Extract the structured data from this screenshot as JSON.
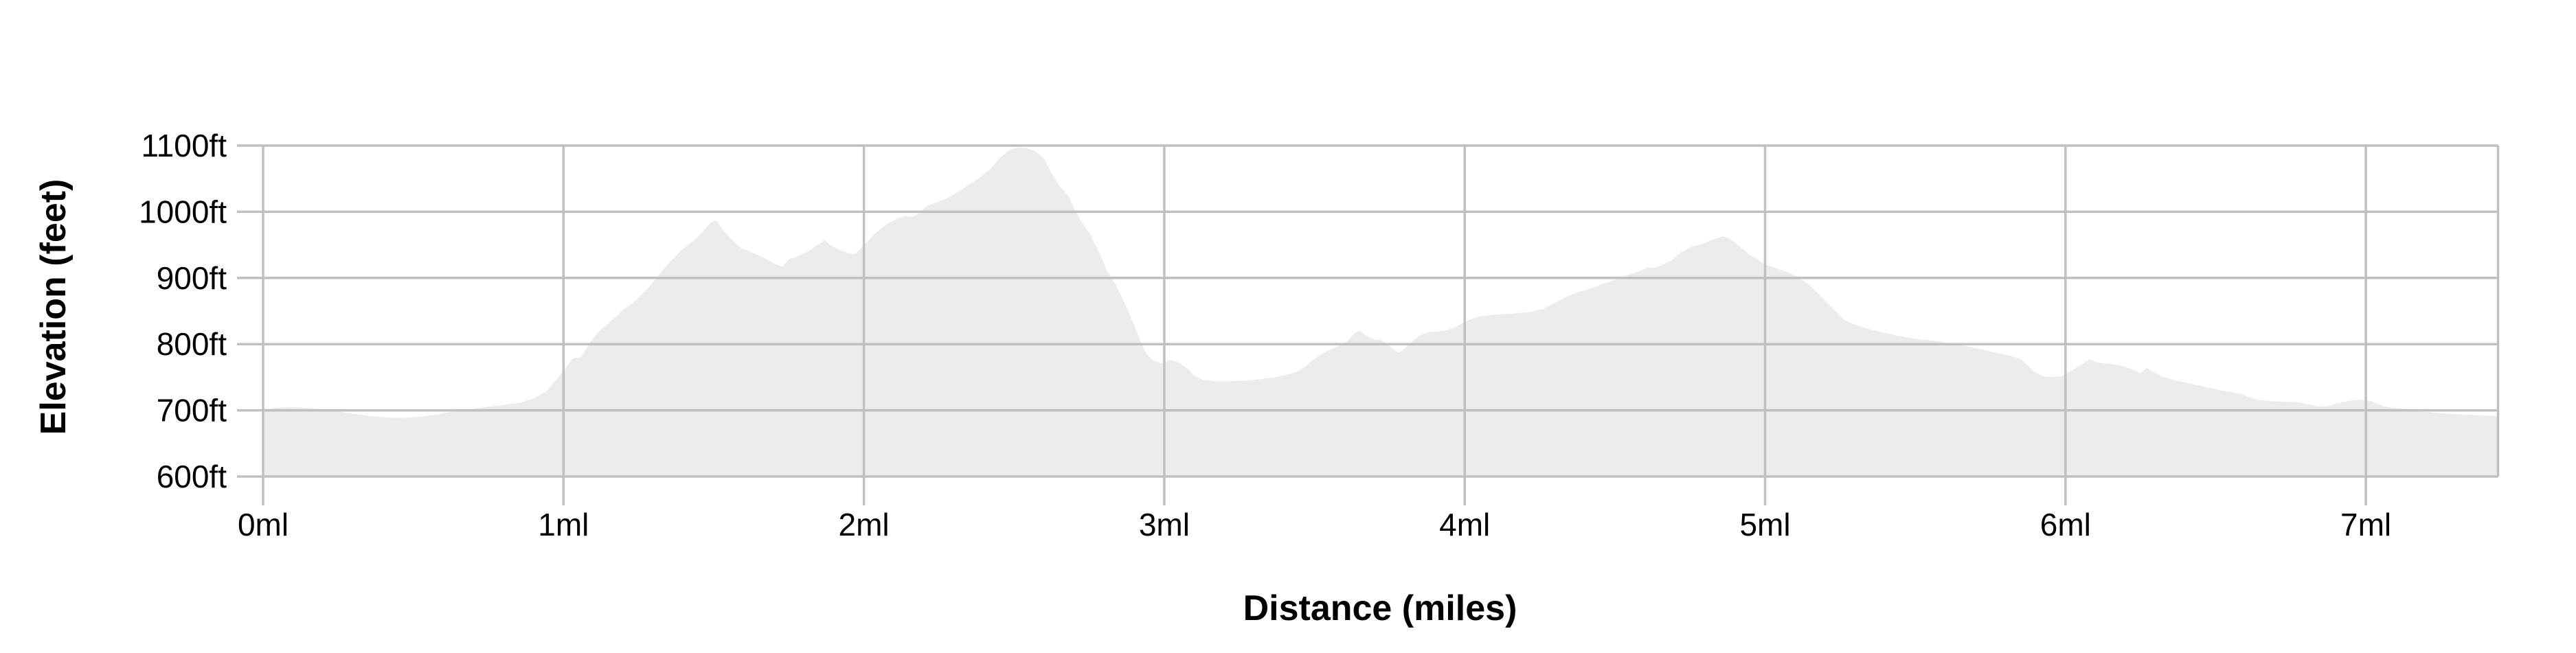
{
  "chart": {
    "y_axis_title": "Elevation (feet)",
    "x_axis_title": "Distance (miles)"
  },
  "chart_data": {
    "type": "area",
    "title": "",
    "xlabel": "Distance (miles)",
    "ylabel": "Elevation (feet)",
    "xlim": [
      0,
      7.44
    ],
    "ylim": [
      600,
      1100
    ],
    "grid": true,
    "legend_position": "none",
    "x_ticks": [
      0,
      1,
      2,
      3,
      4,
      5,
      6,
      7
    ],
    "x_tick_labels": [
      "0ml",
      "1ml",
      "2ml",
      "3ml",
      "4ml",
      "5ml",
      "6ml",
      "7ml"
    ],
    "y_ticks": [
      600,
      700,
      800,
      900,
      1000,
      1100
    ],
    "y_tick_labels": [
      "600ft",
      "700ft",
      "800ft",
      "900ft",
      "1000ft",
      "1100ft"
    ],
    "colors": {
      "area_fill": "#ececec",
      "grid": "#c0c0c0",
      "text": "#000000",
      "background": "#ffffff"
    },
    "series": [
      {
        "name": "elevation_profile",
        "units": {
          "x": "miles",
          "y": "feet"
        },
        "points": [
          [
            0.0,
            702
          ],
          [
            0.05,
            704
          ],
          [
            0.1,
            705
          ],
          [
            0.16,
            703
          ],
          [
            0.22,
            701
          ],
          [
            0.26,
            698
          ],
          [
            0.31,
            694
          ],
          [
            0.36,
            691
          ],
          [
            0.42,
            689
          ],
          [
            0.47,
            689
          ],
          [
            0.52,
            690
          ],
          [
            0.58,
            694
          ],
          [
            0.63,
            698
          ],
          [
            0.69,
            702
          ],
          [
            0.74,
            705
          ],
          [
            0.8,
            708
          ],
          [
            0.85,
            711
          ],
          [
            0.9,
            718
          ],
          [
            0.94,
            728
          ],
          [
            0.98,
            748
          ],
          [
            1.01,
            766
          ],
          [
            1.03,
            778
          ],
          [
            1.06,
            781
          ],
          [
            1.09,
            804
          ],
          [
            1.12,
            820
          ],
          [
            1.16,
            836
          ],
          [
            1.2,
            852
          ],
          [
            1.24,
            866
          ],
          [
            1.28,
            884
          ],
          [
            1.31,
            900
          ],
          [
            1.35,
            922
          ],
          [
            1.39,
            941
          ],
          [
            1.43,
            955
          ],
          [
            1.46,
            968
          ],
          [
            1.49,
            984
          ],
          [
            1.51,
            987
          ],
          [
            1.53,
            972
          ],
          [
            1.56,
            958
          ],
          [
            1.59,
            945
          ],
          [
            1.62,
            940
          ],
          [
            1.65,
            934
          ],
          [
            1.68,
            927
          ],
          [
            1.71,
            920
          ],
          [
            1.73,
            917
          ],
          [
            1.75,
            928
          ],
          [
            1.78,
            933
          ],
          [
            1.81,
            939
          ],
          [
            1.84,
            948
          ],
          [
            1.87,
            957
          ],
          [
            1.89,
            949
          ],
          [
            1.92,
            942
          ],
          [
            1.95,
            937
          ],
          [
            1.97,
            936
          ],
          [
            2.0,
            950
          ],
          [
            2.03,
            964
          ],
          [
            2.06,
            976
          ],
          [
            2.09,
            985
          ],
          [
            2.12,
            991
          ],
          [
            2.14,
            994
          ],
          [
            2.16,
            992
          ],
          [
            2.18,
            997
          ],
          [
            2.21,
            1009
          ],
          [
            2.24,
            1014
          ],
          [
            2.27,
            1019
          ],
          [
            2.3,
            1026
          ],
          [
            2.33,
            1035
          ],
          [
            2.36,
            1044
          ],
          [
            2.39,
            1053
          ],
          [
            2.42,
            1064
          ],
          [
            2.45,
            1080
          ],
          [
            2.48,
            1092
          ],
          [
            2.51,
            1097
          ],
          [
            2.54,
            1096
          ],
          [
            2.57,
            1092
          ],
          [
            2.6,
            1080
          ],
          [
            2.62,
            1062
          ],
          [
            2.65,
            1040
          ],
          [
            2.68,
            1024
          ],
          [
            2.7,
            1005
          ],
          [
            2.72,
            988
          ],
          [
            2.75,
            968
          ],
          [
            2.77,
            950
          ],
          [
            2.79,
            932
          ],
          [
            2.81,
            910
          ],
          [
            2.84,
            889
          ],
          [
            2.86,
            870
          ],
          [
            2.88,
            850
          ],
          [
            2.9,
            828
          ],
          [
            2.92,
            806
          ],
          [
            2.94,
            786
          ],
          [
            2.96,
            776
          ],
          [
            2.99,
            771
          ],
          [
            3.02,
            776
          ],
          [
            3.05,
            772
          ],
          [
            3.08,
            762
          ],
          [
            3.1,
            752
          ],
          [
            3.13,
            746
          ],
          [
            3.17,
            744
          ],
          [
            3.22,
            744
          ],
          [
            3.27,
            745
          ],
          [
            3.32,
            747
          ],
          [
            3.37,
            750
          ],
          [
            3.41,
            754
          ],
          [
            3.44,
            758
          ],
          [
            3.47,
            766
          ],
          [
            3.5,
            778
          ],
          [
            3.54,
            789
          ],
          [
            3.58,
            797
          ],
          [
            3.61,
            805
          ],
          [
            3.63,
            815
          ],
          [
            3.65,
            821
          ],
          [
            3.67,
            813
          ],
          [
            3.7,
            807
          ],
          [
            3.72,
            806
          ],
          [
            3.74,
            801
          ],
          [
            3.76,
            793
          ],
          [
            3.78,
            787
          ],
          [
            3.8,
            793
          ],
          [
            3.82,
            802
          ],
          [
            3.85,
            813
          ],
          [
            3.88,
            818
          ],
          [
            3.91,
            819
          ],
          [
            3.94,
            821
          ],
          [
            3.97,
            826
          ],
          [
            4.0,
            834
          ],
          [
            4.04,
            841
          ],
          [
            4.09,
            844
          ],
          [
            4.15,
            846
          ],
          [
            4.21,
            848
          ],
          [
            4.26,
            853
          ],
          [
            4.3,
            862
          ],
          [
            4.34,
            872
          ],
          [
            4.38,
            879
          ],
          [
            4.42,
            884
          ],
          [
            4.46,
            891
          ],
          [
            4.5,
            897
          ],
          [
            4.54,
            904
          ],
          [
            4.58,
            910
          ],
          [
            4.61,
            916
          ],
          [
            4.63,
            915
          ],
          [
            4.66,
            920
          ],
          [
            4.69,
            927
          ],
          [
            4.72,
            939
          ],
          [
            4.76,
            948
          ],
          [
            4.79,
            951
          ],
          [
            4.82,
            957
          ],
          [
            4.86,
            963
          ],
          [
            4.88,
            960
          ],
          [
            4.91,
            950
          ],
          [
            4.94,
            938
          ],
          [
            4.97,
            929
          ],
          [
            5.0,
            920
          ],
          [
            5.04,
            914
          ],
          [
            5.08,
            908
          ],
          [
            5.11,
            901
          ],
          [
            5.14,
            892
          ],
          [
            5.17,
            880
          ],
          [
            5.2,
            865
          ],
          [
            5.23,
            852
          ],
          [
            5.26,
            838
          ],
          [
            5.29,
            831
          ],
          [
            5.33,
            825
          ],
          [
            5.37,
            820
          ],
          [
            5.41,
            816
          ],
          [
            5.45,
            812
          ],
          [
            5.5,
            808
          ],
          [
            5.54,
            806
          ],
          [
            5.58,
            804
          ],
          [
            5.62,
            801
          ],
          [
            5.66,
            798
          ],
          [
            5.7,
            794
          ],
          [
            5.74,
            790
          ],
          [
            5.78,
            786
          ],
          [
            5.82,
            782
          ],
          [
            5.85,
            778
          ],
          [
            5.87,
            770
          ],
          [
            5.9,
            757
          ],
          [
            5.93,
            751
          ],
          [
            5.96,
            750
          ],
          [
            5.99,
            752
          ],
          [
            6.02,
            760
          ],
          [
            6.05,
            768
          ],
          [
            6.08,
            777
          ],
          [
            6.11,
            772
          ],
          [
            6.15,
            770
          ],
          [
            6.19,
            767
          ],
          [
            6.22,
            762
          ],
          [
            6.25,
            756
          ],
          [
            6.27,
            764
          ],
          [
            6.29,
            759
          ],
          [
            6.32,
            751
          ],
          [
            6.36,
            746
          ],
          [
            6.4,
            742
          ],
          [
            6.44,
            738
          ],
          [
            6.48,
            734
          ],
          [
            6.52,
            730
          ],
          [
            6.56,
            727
          ],
          [
            6.59,
            724
          ],
          [
            6.61,
            720
          ],
          [
            6.64,
            716
          ],
          [
            6.68,
            714
          ],
          [
            6.73,
            713
          ],
          [
            6.78,
            712
          ],
          [
            6.81,
            709
          ],
          [
            6.84,
            706
          ],
          [
            6.87,
            706
          ],
          [
            6.9,
            710
          ],
          [
            6.94,
            714
          ],
          [
            6.98,
            716
          ],
          [
            7.02,
            714
          ],
          [
            7.06,
            706
          ],
          [
            7.1,
            703
          ],
          [
            7.15,
            702
          ],
          [
            7.19,
            698
          ],
          [
            7.24,
            696
          ],
          [
            7.3,
            694
          ],
          [
            7.36,
            693
          ],
          [
            7.4,
            692
          ],
          [
            7.44,
            691
          ]
        ]
      }
    ]
  }
}
